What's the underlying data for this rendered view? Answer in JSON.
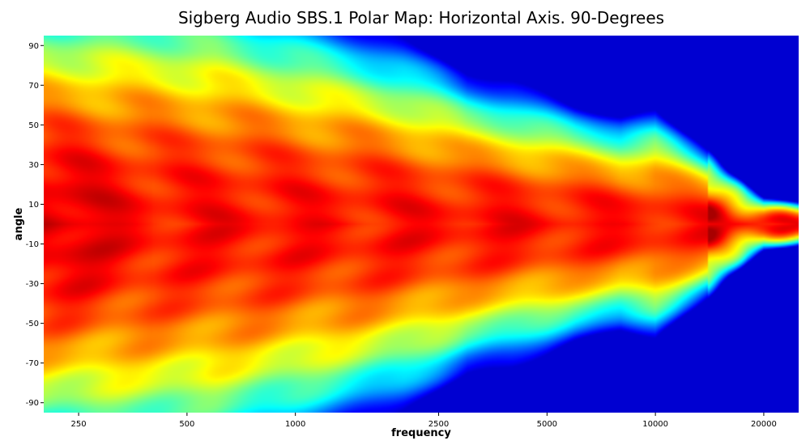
{
  "chart_data": {
    "type": "heatmap",
    "title": "Sigberg Audio SBS.1 Polar Map: Horizontal Axis. 90-Degrees",
    "xlabel": "frequency",
    "ylabel": "angle",
    "x_scale": "log",
    "xlim": [
      200,
      25000
    ],
    "ylim": [
      -95,
      95
    ],
    "x_ticks": [
      250,
      500,
      1000,
      2500,
      5000,
      10000,
      20000
    ],
    "x_tick_labels": [
      "250",
      "500",
      "1000",
      "2500",
      "5000",
      "10000",
      "20000"
    ],
    "y_ticks": [
      90,
      70,
      50,
      30,
      10,
      -10,
      -30,
      -50,
      -70,
      -90
    ],
    "y_tick_labels": [
      "90",
      "70",
      "50",
      "30",
      "10",
      "-10",
      "-30",
      "-50",
      "-70",
      "-90"
    ],
    "colormap": "jet",
    "grid": false,
    "colors": {
      "low": "#00007f",
      "mid": "#7fff7f",
      "high": "#7f0000"
    },
    "approx_beamwidth_half_angle_deg": {
      "frequencies": [
        200,
        250,
        400,
        600,
        800,
        1000,
        1500,
        2000,
        2500,
        3000,
        4000,
        5000,
        6000,
        8000,
        10000,
        12000,
        14000,
        16000,
        18000,
        20000,
        25000
      ],
      "half_angles": [
        95,
        95,
        95,
        92,
        86,
        82,
        74,
        68,
        62,
        56,
        52,
        48,
        44,
        40,
        42,
        34,
        28,
        20,
        14,
        10,
        8
      ]
    }
  }
}
